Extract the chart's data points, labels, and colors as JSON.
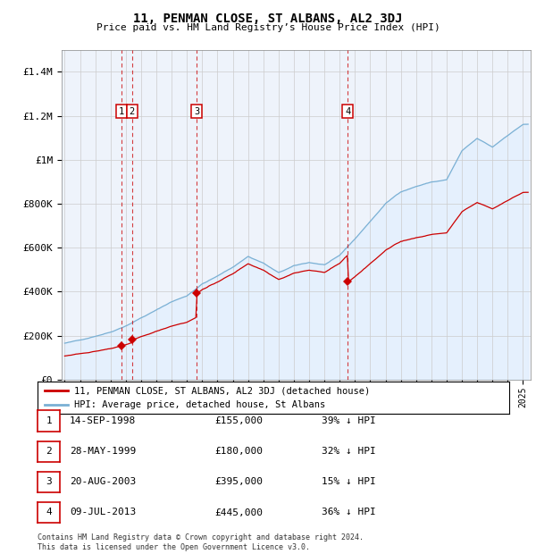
{
  "title": "11, PENMAN CLOSE, ST ALBANS, AL2 3DJ",
  "subtitle": "Price paid vs. HM Land Registry’s House Price Index (HPI)",
  "xlim": [
    1994.8,
    2025.5
  ],
  "ylim": [
    0,
    1500000
  ],
  "yticks": [
    0,
    200000,
    400000,
    600000,
    800000,
    1000000,
    1200000,
    1400000
  ],
  "ytick_labels": [
    "£0",
    "£200K",
    "£400K",
    "£600K",
    "£800K",
    "£1M",
    "£1.2M",
    "£1.4M"
  ],
  "sale_dates": [
    1998.71,
    1999.41,
    2003.63,
    2013.52
  ],
  "sale_prices": [
    155000,
    180000,
    395000,
    445000
  ],
  "sale_labels": [
    "1",
    "2",
    "3",
    "4"
  ],
  "sale_color": "#cc0000",
  "hpi_color": "#7ab0d4",
  "hpi_fill_color": "#ddeeff",
  "legend_entries": [
    "11, PENMAN CLOSE, ST ALBANS, AL2 3DJ (detached house)",
    "HPI: Average price, detached house, St Albans"
  ],
  "table_entries": [
    {
      "num": "1",
      "date": "14-SEP-1998",
      "price": "£155,000",
      "note": "39% ↓ HPI"
    },
    {
      "num": "2",
      "date": "28-MAY-1999",
      "price": "£180,000",
      "note": "32% ↓ HPI"
    },
    {
      "num": "3",
      "date": "20-AUG-2003",
      "price": "£395,000",
      "note": "15% ↓ HPI"
    },
    {
      "num": "4",
      "date": "09-JUL-2013",
      "price": "£445,000",
      "note": "36% ↓ HPI"
    }
  ],
  "footer": "Contains HM Land Registry data © Crown copyright and database right 2024.\nThis data is licensed under the Open Government Licence v3.0.",
  "background_color": "#ffffff",
  "plot_bg_color": "#eef3fb"
}
